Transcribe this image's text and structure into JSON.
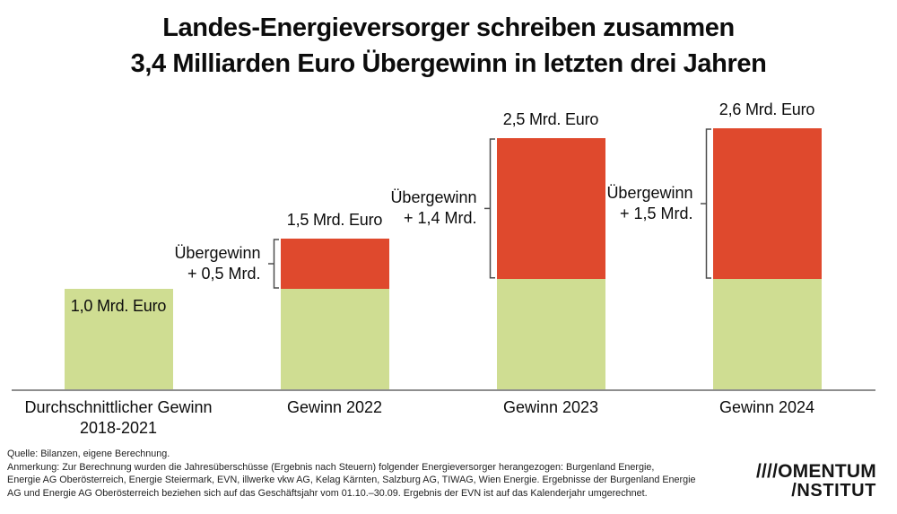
{
  "title": {
    "line1": "Landes-Energieversorger schreiben zusammen",
    "line2": "3,4 Milliarden Euro Übergewinn in letzten drei Jahren"
  },
  "chart_data": {
    "type": "bar",
    "stacked": true,
    "unit": "Mrd. Euro",
    "ylim": [
      0,
      2.8
    ],
    "grid": false,
    "legend": "none",
    "colors": {
      "gewinn_green": "#cfdd92",
      "uebergewinn_red": "#df492d",
      "axis_gray": "#8e8e8e",
      "bracket_gray": "#4d4d4d"
    },
    "bars": [
      {
        "category_lines": [
          "Durchschnittlicher Gewinn",
          "2018-2021"
        ],
        "total": 1.0,
        "base": 1.0,
        "excess": 0,
        "value_label": "1,0 Mrd. Euro",
        "value_label_inside": true,
        "annotation_lines": []
      },
      {
        "category_lines": [
          "Gewinn 2022"
        ],
        "total": 1.5,
        "base": 1.0,
        "excess": 0.5,
        "value_label": "1,5 Mrd. Euro",
        "value_label_inside": false,
        "annotation_lines": [
          "Übergewinn",
          "+ 0,5 Mrd."
        ]
      },
      {
        "category_lines": [
          "Gewinn 2023"
        ],
        "total": 2.5,
        "base": 1.1,
        "excess": 1.4,
        "value_label": "2,5 Mrd. Euro",
        "value_label_inside": false,
        "annotation_lines": [
          "Übergewinn",
          "+ 1,4 Mrd."
        ]
      },
      {
        "category_lines": [
          "Gewinn 2024"
        ],
        "total": 2.6,
        "base": 1.1,
        "excess": 1.5,
        "value_label": "2,6 Mrd. Euro",
        "value_label_inside": false,
        "annotation_lines": [
          "Übergewinn",
          "+ 1,5 Mrd."
        ]
      }
    ]
  },
  "footer": {
    "source": "Quelle: Bilanzen, eigene Berechnung.",
    "note_lines": [
      "Anmerkung: Zur Berechnung wurden die Jahresüberschüsse (Ergebnis nach Steuern) folgender Energieversorger herangezogen: Burgenland Energie,",
      "Energie AG Oberösterreich, Energie Steiermark, EVN, illwerke vkw AG, Kelag Kärnten, Salzburg AG, TIWAG, Wien Energie. Ergebnisse der Burgenland Energie",
      "AG und Energie AG Oberösterreich beziehen sich auf das Geschäftsjahr vom 01.10.–30.09. Ergebnis der EVN ist auf das Kalenderjahr umgerechnet."
    ]
  },
  "logo": {
    "line1": "////OMENTUM",
    "line2": "/NSTITUT"
  }
}
